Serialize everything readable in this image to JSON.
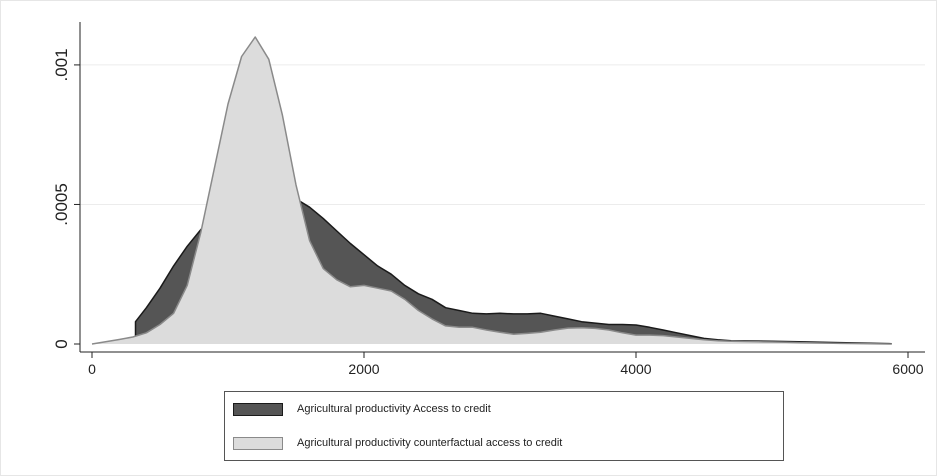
{
  "chart_data": {
    "type": "area",
    "xlim": [
      0,
      6000
    ],
    "ylim": [
      0,
      0.0011
    ],
    "x_ticks": [
      0,
      2000,
      4000,
      6000
    ],
    "x_tick_labels": [
      "0",
      "2000",
      "4000",
      "6000"
    ],
    "y_ticks": [
      0,
      0.0005,
      0.001
    ],
    "y_tick_labels": [
      "0",
      ".0005",
      ".001"
    ],
    "grid": true,
    "legend_position": "bottom",
    "title": "",
    "xlabel": "",
    "ylabel": "",
    "series": [
      {
        "name": "Agricultural productivity Access to credit",
        "color": "#555555",
        "stroke": "#1a1a1a",
        "x": [
          320,
          320,
          400,
          500,
          600,
          700,
          800,
          900,
          1000,
          1100,
          1200,
          1300,
          1400,
          1500,
          1600,
          1700,
          1800,
          1900,
          2000,
          2100,
          2200,
          2300,
          2400,
          2500,
          2600,
          2700,
          2800,
          2900,
          3000,
          3100,
          3200,
          3300,
          3400,
          3500,
          3600,
          3700,
          3800,
          3900,
          4000,
          4100,
          4200,
          4300,
          4400,
          4500,
          4600,
          4700,
          4800,
          5000,
          5200,
          5500,
          5880
        ],
        "y": [
          0,
          8e-05,
          0.00013,
          0.0002,
          0.00028,
          0.00035,
          0.00041,
          0.00046,
          0.0005,
          0.00052,
          0.000535,
          0.00054,
          0.000535,
          0.00052,
          0.00049,
          0.00045,
          0.000405,
          0.00036,
          0.00032,
          0.00028,
          0.00025,
          0.00021,
          0.00018,
          0.00016,
          0.00013,
          0.00012,
          0.00011,
          0.000108,
          0.00011,
          0.000108,
          0.000108,
          0.00011,
          0.0001,
          9e-05,
          8e-05,
          7.5e-05,
          7e-05,
          7e-05,
          6.8e-05,
          6e-05,
          5e-05,
          4e-05,
          3e-05,
          2e-05,
          1.5e-05,
          1.2e-05,
          1.1e-05,
          1e-05,
          8e-06,
          5e-06,
          1e-06
        ]
      },
      {
        "name": "Agricultural productivity counterfactual access to credit",
        "color": "#dcdcdc",
        "stroke": "#8a8a8a",
        "x": [
          0,
          100,
          200,
          300,
          400,
          500,
          600,
          700,
          800,
          900,
          1000,
          1100,
          1200,
          1300,
          1400,
          1500,
          1600,
          1700,
          1800,
          1900,
          2000,
          2100,
          2200,
          2300,
          2400,
          2500,
          2600,
          2700,
          2800,
          2900,
          3000,
          3100,
          3200,
          3300,
          3400,
          3500,
          3600,
          3700,
          3800,
          3900,
          4000,
          4100,
          4200,
          4300,
          4400,
          4500,
          4600,
          4700,
          4800,
          4900,
          5000,
          5100,
          5200,
          5300,
          5500,
          5880
        ],
        "y": [
          0,
          8e-06,
          1.6e-05,
          2.5e-05,
          4e-05,
          7e-05,
          0.00011,
          0.00021,
          0.0004,
          0.00063,
          0.00086,
          0.00103,
          0.0011,
          0.00102,
          0.00082,
          0.00057,
          0.00037,
          0.00027,
          0.00023,
          0.000205,
          0.00021,
          0.0002,
          0.00019,
          0.00016,
          0.00012,
          9e-05,
          6.5e-05,
          6e-05,
          6e-05,
          5e-05,
          4.2e-05,
          3.5e-05,
          3.8e-05,
          4.2e-05,
          5e-05,
          5.7e-05,
          5.8e-05,
          5.6e-05,
          5e-05,
          4e-05,
          3.2e-05,
          3.2e-05,
          3e-05,
          2.5e-05,
          2e-05,
          1.5e-05,
          1.2e-05,
          1e-05,
          9e-06,
          8e-06,
          7e-06,
          6e-06,
          5e-06,
          4e-06,
          2e-06,
          0
        ]
      }
    ]
  }
}
